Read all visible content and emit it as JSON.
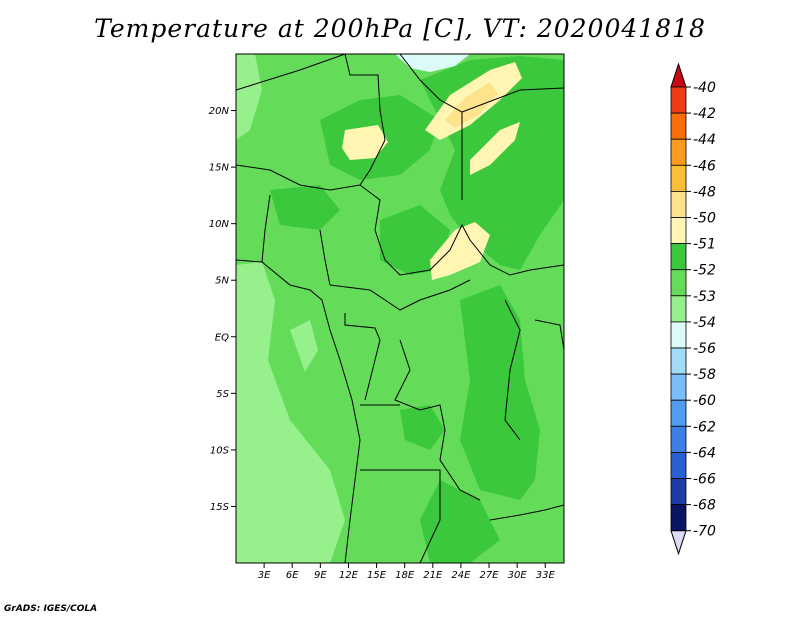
{
  "title": "Temperature at 200hPa [C], VT: 2020041818",
  "credit": "GrADS: IGES/COLA",
  "map": {
    "lon_range": [
      0,
      35
    ],
    "lat_range": [
      -20,
      25
    ],
    "lat_ticks": [
      {
        "value": 20,
        "label": "20N"
      },
      {
        "value": 15,
        "label": "15N"
      },
      {
        "value": 10,
        "label": "10N"
      },
      {
        "value": 5,
        "label": "5N"
      },
      {
        "value": 0,
        "label": "EQ"
      },
      {
        "value": -5,
        "label": "5S"
      },
      {
        "value": -10,
        "label": "10S"
      },
      {
        "value": -15,
        "label": "15S"
      }
    ],
    "lon_ticks": [
      {
        "value": 3,
        "label": "3E"
      },
      {
        "value": 6,
        "label": "6E"
      },
      {
        "value": 9,
        "label": "9E"
      },
      {
        "value": 12,
        "label": "12E"
      },
      {
        "value": 15,
        "label": "15E"
      },
      {
        "value": 18,
        "label": "18E"
      },
      {
        "value": 21,
        "label": "21E"
      },
      {
        "value": 24,
        "label": "24E"
      },
      {
        "value": 27,
        "label": "27E"
      },
      {
        "value": 30,
        "label": "30E"
      },
      {
        "value": 33,
        "label": "33E"
      }
    ]
  },
  "colorbar": {
    "levels": [
      {
        "label": "-40",
        "color": "#e8141e"
      },
      {
        "label": "-42",
        "color": "#f03c16"
      },
      {
        "label": "-44",
        "color": "#fa6e0a"
      },
      {
        "label": "-46",
        "color": "#fa9a1e"
      },
      {
        "label": "-48",
        "color": "#fcbe38"
      },
      {
        "label": "-50",
        "color": "#fee28c"
      },
      {
        "label": "-51",
        "color": "#fff6b4"
      },
      {
        "label": "-52",
        "color": "#3cc83c"
      },
      {
        "label": "-53",
        "color": "#64dc5a"
      },
      {
        "label": "-54",
        "color": "#96f08c"
      },
      {
        "label": "-56",
        "color": "#dcfaf8"
      },
      {
        "label": "-58",
        "color": "#a0dcfa"
      },
      {
        "label": "-60",
        "color": "#78befa"
      },
      {
        "label": "-62",
        "color": "#509cf0"
      },
      {
        "label": "-64",
        "color": "#3c80e6"
      },
      {
        "label": "-66",
        "color": "#2860d2"
      },
      {
        "label": "-68",
        "color": "#1e3ca8"
      },
      {
        "label": "-70",
        "color": "#0a1464"
      }
    ],
    "top_arrow_color": "#c80a14",
    "bottom_arrow_color": "#dcdcf8"
  },
  "field_colors": {
    "c52": "#3cc83c",
    "c53": "#64dc5a",
    "c54": "#96f08c",
    "c56": "#dcfaf8",
    "c51": "#fff6b4",
    "c50": "#fee28c"
  }
}
